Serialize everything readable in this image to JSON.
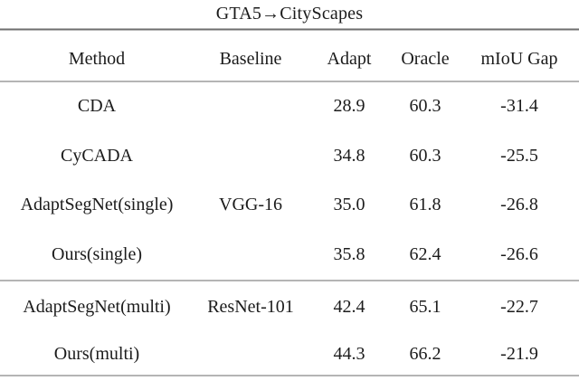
{
  "title": "GTA5→CityScapes",
  "colors": {
    "background": "#ffffff",
    "text": "#1b1b1b",
    "rule": "#6f6f6f"
  },
  "table": {
    "headers": {
      "method": "Method",
      "baseline": "Baseline",
      "adapt": "Adapt",
      "oracle": "Oracle",
      "gap": "mIoU Gap"
    },
    "sections": [
      {
        "rows": [
          {
            "method": "CDA",
            "baseline": "",
            "adapt": "28.9",
            "oracle": "60.3",
            "gap": "-31.4"
          },
          {
            "method": "CyCADA",
            "baseline": "",
            "adapt": "34.8",
            "oracle": "60.3",
            "gap": "-25.5"
          },
          {
            "method": "AdaptSegNet(single)",
            "baseline": "VGG-16",
            "adapt": "35.0",
            "oracle": "61.8",
            "gap": "-26.8"
          },
          {
            "method": "Ours(single)",
            "baseline": "",
            "adapt": "35.8",
            "oracle": "62.4",
            "gap": "-26.6"
          }
        ]
      },
      {
        "rows": [
          {
            "method": "AdaptSegNet(multi)",
            "baseline": "ResNet-101",
            "adapt": "42.4",
            "oracle": "65.1",
            "gap": "-22.7"
          },
          {
            "method": "Ours(multi)",
            "baseline": "",
            "adapt": "44.3",
            "oracle": "66.2",
            "gap": "-21.9"
          }
        ]
      }
    ]
  }
}
